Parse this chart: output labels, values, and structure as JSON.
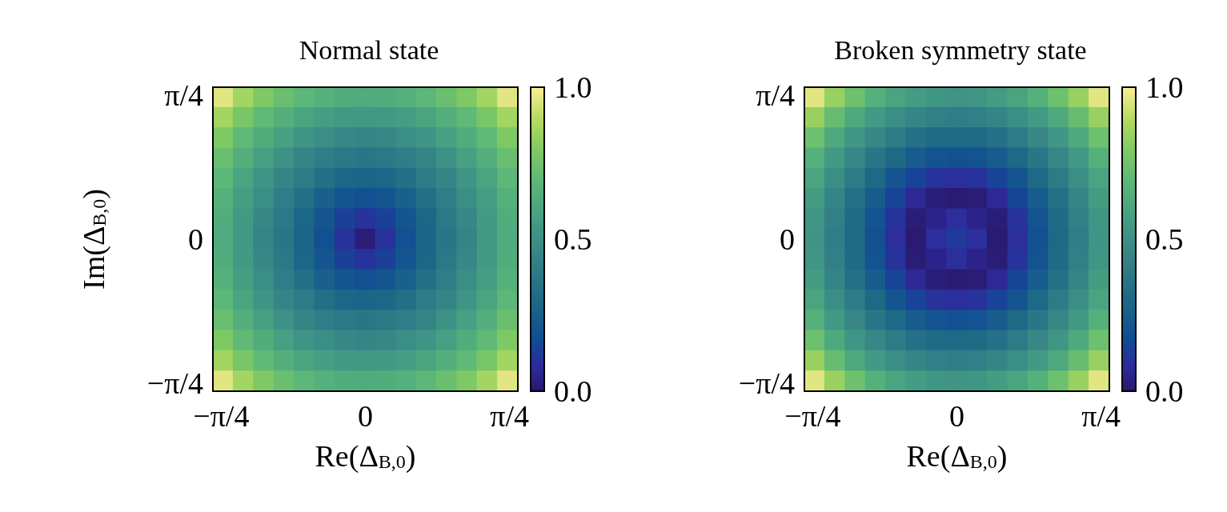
{
  "chart_data": [
    {
      "type": "heatmap",
      "title": "Normal state",
      "xlabel": "Re(Δ$_{B,0}$)",
      "ylabel": "Im(Δ$_{B,0}$)",
      "xlim": [
        -0.83,
        0.83
      ],
      "ylim": [
        -0.83,
        0.83
      ],
      "xticks": [
        {
          "value": -0.785,
          "label": "−π/4"
        },
        {
          "value": -0.393,
          "label": null
        },
        {
          "value": 0,
          "label": "0"
        },
        {
          "value": 0.393,
          "label": null
        },
        {
          "value": 0.785,
          "label": "π/4"
        }
      ],
      "yticks": [
        {
          "value": -0.785,
          "label": "−π/4"
        },
        {
          "value": -0.393,
          "label": null
        },
        {
          "value": 0,
          "label": "0"
        },
        {
          "value": 0.393,
          "label": null
        },
        {
          "value": 0.785,
          "label": "π/4"
        }
      ],
      "clim": [
        0,
        1
      ],
      "cticks": [
        {
          "value": 0,
          "label": "0.0"
        },
        {
          "value": 0.5,
          "label": "0.5"
        },
        {
          "value": 1,
          "label": "1.0"
        }
      ],
      "cells": [
        [
          0.96,
          0.86,
          0.79,
          0.73,
          0.69,
          0.66,
          0.64,
          0.63,
          0.64,
          0.66,
          0.69,
          0.73,
          0.79,
          0.86,
          0.96
        ],
        [
          0.86,
          0.77,
          0.7,
          0.65,
          0.6,
          0.57,
          0.55,
          0.54,
          0.55,
          0.57,
          0.6,
          0.65,
          0.7,
          0.77,
          0.86
        ],
        [
          0.79,
          0.7,
          0.64,
          0.58,
          0.52,
          0.49,
          0.46,
          0.45,
          0.46,
          0.49,
          0.52,
          0.58,
          0.64,
          0.7,
          0.79
        ],
        [
          0.73,
          0.65,
          0.58,
          0.51,
          0.45,
          0.41,
          0.38,
          0.37,
          0.38,
          0.41,
          0.45,
          0.51,
          0.58,
          0.65,
          0.73
        ],
        [
          0.69,
          0.6,
          0.52,
          0.45,
          0.39,
          0.33,
          0.29,
          0.28,
          0.29,
          0.33,
          0.39,
          0.45,
          0.52,
          0.6,
          0.69
        ],
        [
          0.66,
          0.57,
          0.49,
          0.41,
          0.33,
          0.26,
          0.21,
          0.19,
          0.21,
          0.26,
          0.33,
          0.41,
          0.49,
          0.57,
          0.66
        ],
        [
          0.64,
          0.55,
          0.46,
          0.38,
          0.29,
          0.21,
          0.14,
          0.1,
          0.14,
          0.21,
          0.29,
          0.38,
          0.46,
          0.55,
          0.64
        ],
        [
          0.63,
          0.54,
          0.45,
          0.37,
          0.28,
          0.19,
          0.1,
          0.02,
          0.1,
          0.19,
          0.28,
          0.37,
          0.45,
          0.54,
          0.63
        ],
        [
          0.64,
          0.55,
          0.46,
          0.38,
          0.29,
          0.21,
          0.14,
          0.1,
          0.14,
          0.21,
          0.29,
          0.38,
          0.46,
          0.55,
          0.64
        ],
        [
          0.66,
          0.57,
          0.49,
          0.41,
          0.33,
          0.26,
          0.21,
          0.19,
          0.21,
          0.26,
          0.33,
          0.41,
          0.49,
          0.57,
          0.66
        ],
        [
          0.69,
          0.6,
          0.52,
          0.45,
          0.39,
          0.33,
          0.29,
          0.28,
          0.29,
          0.33,
          0.39,
          0.45,
          0.52,
          0.6,
          0.69
        ],
        [
          0.73,
          0.65,
          0.58,
          0.51,
          0.45,
          0.41,
          0.38,
          0.37,
          0.38,
          0.41,
          0.45,
          0.51,
          0.58,
          0.65,
          0.73
        ],
        [
          0.79,
          0.7,
          0.64,
          0.58,
          0.52,
          0.49,
          0.46,
          0.45,
          0.46,
          0.49,
          0.52,
          0.58,
          0.64,
          0.7,
          0.79
        ],
        [
          0.86,
          0.77,
          0.7,
          0.65,
          0.6,
          0.57,
          0.55,
          0.54,
          0.55,
          0.57,
          0.6,
          0.65,
          0.7,
          0.77,
          0.86
        ],
        [
          0.96,
          0.86,
          0.79,
          0.73,
          0.69,
          0.66,
          0.64,
          0.63,
          0.64,
          0.66,
          0.69,
          0.73,
          0.79,
          0.86,
          0.96
        ]
      ]
    },
    {
      "type": "heatmap",
      "title": "Broken symmetry state",
      "xlabel": "Re(Δ$_{B,0}$)",
      "xlim": [
        -0.83,
        0.83
      ],
      "ylim": [
        -0.83,
        0.83
      ],
      "xticks": [
        {
          "value": -0.785,
          "label": "−π/4"
        },
        {
          "value": -0.393,
          "label": null
        },
        {
          "value": 0,
          "label": "0"
        },
        {
          "value": 0.393,
          "label": null
        },
        {
          "value": 0.785,
          "label": "π/4"
        }
      ],
      "yticks": [
        {
          "value": -0.785,
          "label": "−π/4"
        },
        {
          "value": -0.393,
          "label": null
        },
        {
          "value": 0,
          "label": "0"
        },
        {
          "value": 0.393,
          "label": null
        },
        {
          "value": 0.785,
          "label": "π/4"
        }
      ],
      "clim": [
        0,
        1
      ],
      "cticks": [
        {
          "value": 0,
          "label": "0.0"
        },
        {
          "value": 0.5,
          "label": "0.5"
        },
        {
          "value": 1,
          "label": "1.0"
        }
      ],
      "cells": [
        [
          0.96,
          0.84,
          0.74,
          0.66,
          0.6,
          0.56,
          0.53,
          0.52,
          0.53,
          0.56,
          0.6,
          0.66,
          0.74,
          0.84,
          0.96
        ],
        [
          0.84,
          0.72,
          0.62,
          0.55,
          0.49,
          0.45,
          0.42,
          0.41,
          0.42,
          0.45,
          0.49,
          0.55,
          0.62,
          0.72,
          0.84
        ],
        [
          0.74,
          0.62,
          0.53,
          0.46,
          0.39,
          0.34,
          0.31,
          0.3,
          0.31,
          0.34,
          0.39,
          0.46,
          0.53,
          0.62,
          0.74
        ],
        [
          0.66,
          0.55,
          0.46,
          0.37,
          0.3,
          0.24,
          0.2,
          0.19,
          0.2,
          0.24,
          0.3,
          0.37,
          0.46,
          0.55,
          0.66
        ],
        [
          0.6,
          0.49,
          0.39,
          0.3,
          0.21,
          0.15,
          0.1,
          0.09,
          0.1,
          0.15,
          0.21,
          0.3,
          0.39,
          0.49,
          0.6
        ],
        [
          0.56,
          0.45,
          0.34,
          0.24,
          0.15,
          0.07,
          0.02,
          0.01,
          0.02,
          0.07,
          0.15,
          0.24,
          0.34,
          0.45,
          0.56
        ],
        [
          0.53,
          0.42,
          0.31,
          0.2,
          0.1,
          0.02,
          0.05,
          0.09,
          0.05,
          0.02,
          0.1,
          0.2,
          0.31,
          0.42,
          0.53
        ],
        [
          0.52,
          0.41,
          0.3,
          0.19,
          0.09,
          0.01,
          0.09,
          0.12,
          0.09,
          0.01,
          0.09,
          0.19,
          0.3,
          0.41,
          0.52
        ],
        [
          0.53,
          0.42,
          0.31,
          0.2,
          0.1,
          0.02,
          0.05,
          0.09,
          0.05,
          0.02,
          0.1,
          0.2,
          0.31,
          0.42,
          0.53
        ],
        [
          0.56,
          0.45,
          0.34,
          0.24,
          0.15,
          0.07,
          0.02,
          0.01,
          0.02,
          0.07,
          0.15,
          0.24,
          0.34,
          0.45,
          0.56
        ],
        [
          0.6,
          0.49,
          0.39,
          0.3,
          0.21,
          0.15,
          0.1,
          0.09,
          0.1,
          0.15,
          0.21,
          0.3,
          0.39,
          0.49,
          0.6
        ],
        [
          0.66,
          0.55,
          0.46,
          0.37,
          0.3,
          0.24,
          0.2,
          0.19,
          0.2,
          0.24,
          0.3,
          0.37,
          0.46,
          0.55,
          0.66
        ],
        [
          0.74,
          0.62,
          0.53,
          0.46,
          0.39,
          0.34,
          0.31,
          0.3,
          0.31,
          0.34,
          0.39,
          0.46,
          0.53,
          0.62,
          0.74
        ],
        [
          0.84,
          0.72,
          0.62,
          0.55,
          0.49,
          0.45,
          0.42,
          0.41,
          0.42,
          0.45,
          0.49,
          0.55,
          0.62,
          0.72,
          0.84
        ],
        [
          0.96,
          0.84,
          0.74,
          0.66,
          0.6,
          0.56,
          0.53,
          0.52,
          0.53,
          0.56,
          0.6,
          0.66,
          0.74,
          0.84,
          0.96
        ]
      ]
    }
  ]
}
